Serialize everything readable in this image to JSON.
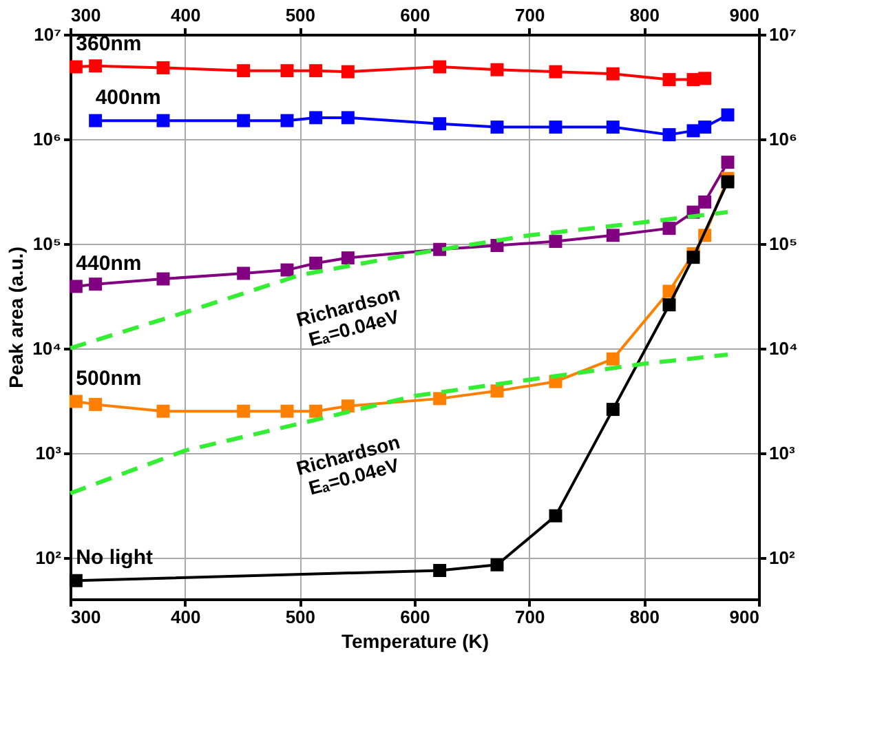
{
  "chart_data": {
    "type": "line",
    "xlabel": "Temperature (K)",
    "ylabel": "Peak area (a.u.)",
    "log": "y",
    "grid": true,
    "marker": "square",
    "line_style": "solid",
    "xlim": [
      300,
      900
    ],
    "xticks": [
      300,
      400,
      500,
      600,
      700,
      800,
      900
    ],
    "x2lim": [
      300,
      900
    ],
    "x2ticks": [
      300,
      400,
      500,
      600,
      700,
      800,
      900
    ],
    "ylim": [
      40,
      10000000
    ],
    "yticks": [
      {
        "value": 100,
        "label": "10²"
      },
      {
        "value": 1000,
        "label": "10³"
      },
      {
        "value": 10000,
        "label": "10⁴"
      },
      {
        "value": 100000,
        "label": "10⁵"
      },
      {
        "value": 1000000,
        "label": "10⁶"
      },
      {
        "value": 10000000,
        "label": "10⁷"
      }
    ],
    "series": [
      {
        "name": "360nm",
        "color": "#ff0000",
        "x": [
          305,
          322,
          381,
          451,
          489,
          514,
          542,
          622,
          672,
          723,
          773,
          822,
          843,
          853
        ],
        "values": [
          4900000,
          5000000,
          4800000,
          4500000,
          4500000,
          4500000,
          4400000,
          4900000,
          4600000,
          4400000,
          4200000,
          3700000,
          3700000,
          3800000
        ]
      },
      {
        "name": "400nm",
        "color": "#0000ff",
        "x": [
          322,
          381,
          451,
          489,
          514,
          542,
          622,
          672,
          723,
          773,
          822,
          843,
          853,
          873
        ],
        "values": [
          1500000,
          1500000,
          1500000,
          1500000,
          1600000,
          1600000,
          1400000,
          1300000,
          1300000,
          1300000,
          1100000,
          1200000,
          1300000,
          1700000
        ]
      },
      {
        "name": "440nm",
        "color": "#800080",
        "x": [
          305,
          322,
          381,
          451,
          489,
          514,
          542,
          622,
          672,
          723,
          773,
          822,
          843,
          853,
          873
        ],
        "values": [
          39000,
          41000,
          46000,
          52000,
          56000,
          65000,
          73000,
          88000,
          96000,
          105000,
          120000,
          140000,
          200000,
          250000,
          600000
        ]
      },
      {
        "name": "500nm",
        "color": "#ff8000",
        "x": [
          305,
          322,
          381,
          451,
          489,
          514,
          542,
          622,
          672,
          723,
          773,
          822,
          843,
          853,
          873
        ],
        "values": [
          3100,
          2900,
          2500,
          2500,
          2500,
          2500,
          2800,
          3300,
          3900,
          4800,
          7900,
          35000,
          80000,
          120000,
          420000
        ]
      },
      {
        "name": "No light",
        "color": "#000000",
        "x": [
          305,
          622,
          672,
          723,
          773,
          822,
          843,
          873
        ],
        "values": [
          60,
          75,
          85,
          250,
          2600,
          26000,
          74000,
          390000
        ]
      },
      {
        "name": "Richardson\nEₐ=0.04eV",
        "color": "#33ee33",
        "marker": "none",
        "line_style": "dashed",
        "x": [
          300,
          400,
          500,
          600,
          700,
          800,
          873
        ],
        "values": [
          10000,
          22000,
          50000,
          80000,
          120000,
          160000,
          200000
        ]
      },
      {
        "name": "Richardson\nEₐ=0.04eV",
        "color": "#33ee33",
        "marker": "none",
        "line_style": "dashed",
        "x": [
          300,
          400,
          500,
          600,
          700,
          800,
          873
        ],
        "values": [
          410,
          1050,
          1900,
          3500,
          5000,
          7100,
          8700
        ]
      }
    ]
  }
}
